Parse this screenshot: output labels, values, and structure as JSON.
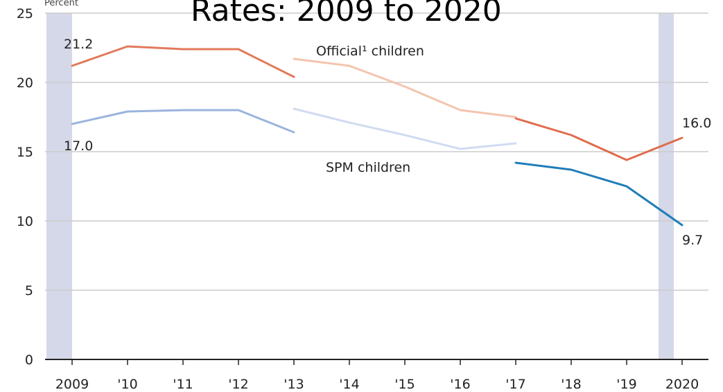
{
  "chart_data": {
    "type": "line",
    "title": "Rates: 2009 to 2020",
    "ylabel": "Percent",
    "ylim": [
      0,
      25
    ],
    "yticks": [
      0,
      5,
      10,
      15,
      20,
      25
    ],
    "categories": [
      "2009",
      "'10",
      "'11",
      "'12",
      "'13",
      "'14",
      "'15",
      "'16",
      "'17",
      "'18",
      "'19",
      "2020"
    ],
    "grid": true,
    "shaded_years": [
      "2009",
      "2020"
    ],
    "series": [
      {
        "name": "Official¹ children",
        "segments": [
          {
            "x": [
              0,
              1,
              2,
              3,
              4
            ],
            "values": [
              21.2,
              22.6,
              22.4,
              22.4,
              20.4
            ],
            "color": "#e07a5a"
          },
          {
            "x": [
              4,
              5,
              6,
              7,
              8
            ],
            "values": [
              21.7,
              21.2,
              19.7,
              18.0,
              17.5
            ],
            "color": "#f4c4ae"
          },
          {
            "x": [
              8,
              9,
              10,
              11
            ],
            "values": [
              17.4,
              16.2,
              14.4,
              16.0
            ],
            "color": "#e06c4c"
          }
        ]
      },
      {
        "name": "SPM children",
        "segments": [
          {
            "x": [
              0,
              1,
              2,
              3,
              4
            ],
            "values": [
              17.0,
              17.9,
              18.0,
              18.0,
              16.4
            ],
            "color": "#9bb4de"
          },
          {
            "x": [
              4,
              5,
              6,
              7,
              8
            ],
            "values": [
              18.1,
              17.1,
              16.2,
              15.2,
              15.6
            ],
            "color": "#d0dbf1"
          },
          {
            "x": [
              8,
              9,
              10,
              11
            ],
            "values": [
              14.2,
              13.7,
              12.5,
              9.7
            ],
            "color": "#1f7db8"
          }
        ]
      }
    ],
    "annotations": [
      {
        "text": "21.2",
        "x": 0,
        "value": 21.2
      },
      {
        "text": "17.0",
        "x": 0,
        "value": 17.0
      },
      {
        "text": "16.0",
        "x": 11,
        "value": 16.0
      },
      {
        "text": "9.7",
        "x": 11,
        "value": 9.7
      }
    ],
    "colors": {
      "shade": "#d5d8e8",
      "grid": "#cccccc",
      "axis": "#222222"
    }
  }
}
